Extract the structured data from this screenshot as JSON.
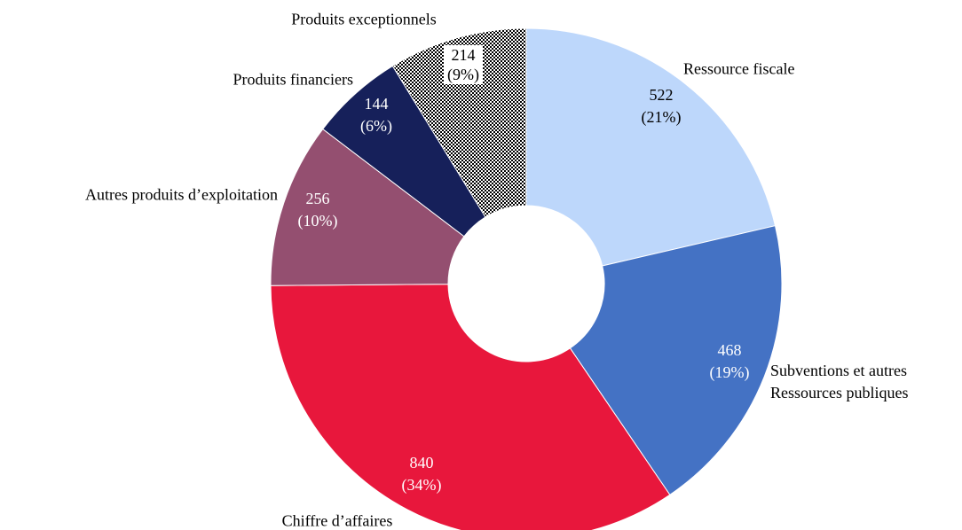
{
  "chart_data": {
    "type": "donut",
    "categories": [
      "Ressource fiscale",
      "Subventions et autres\nRessources publiques",
      "Chiffre d’affaires",
      "Autres produits d’exploitation",
      "Produits financiers",
      "Produits exceptionnels"
    ],
    "values": [
      522,
      468,
      840,
      256,
      144,
      214
    ],
    "value_labels": [
      "522\n(21%)",
      "468\n(19%)",
      "840\n(34%)",
      "256\n(10%)",
      "144\n(6%)",
      "214\n(9%)"
    ],
    "colors": [
      "#bdd7fb",
      "#4472c4",
      "#e8173c",
      "#944f70",
      "#16205a",
      "#ffffff"
    ],
    "patterns": [
      null,
      null,
      null,
      null,
      null,
      "dotted"
    ]
  }
}
